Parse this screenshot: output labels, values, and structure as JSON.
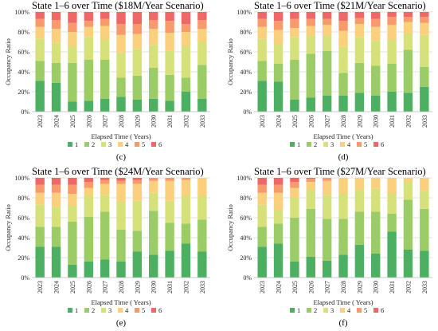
{
  "colors": [
    "#4caf62",
    "#9ccc65",
    "#d6e17a",
    "#fbd07c",
    "#f99a6d",
    "#f06767"
  ],
  "chart_data": [
    {
      "type": "bar",
      "stacked": true,
      "title": "State 1–6 over Time ($18M/Year Scenario)",
      "panel_label": "(c)",
      "xlabel": "Elapsed Time ( Years)",
      "ylabel": "Occupancy Ratio",
      "ylim": [
        0,
        100
      ],
      "y_ticks": [
        "0%",
        "20%",
        "40%",
        "60%",
        "80%",
        "100%"
      ],
      "grid": true,
      "legend_position": "bottom",
      "categories": [
        "2023",
        "2024",
        "2025",
        "2026",
        "2027",
        "2028",
        "2029",
        "2030",
        "2031",
        "2032",
        "2033"
      ],
      "series": [
        {
          "name": "1",
          "values": [
            31,
            29,
            10,
            11,
            13,
            15,
            12,
            13,
            11,
            20,
            13
          ]
        },
        {
          "name": "2",
          "values": [
            20,
            20,
            39,
            41,
            39,
            19,
            24,
            31,
            26,
            14,
            34
          ]
        },
        {
          "name": "3",
          "values": [
            22,
            20,
            17,
            23,
            20,
            25,
            27,
            23,
            24,
            32,
            23
          ]
        },
        {
          "name": "4",
          "values": [
            12,
            14,
            14,
            10,
            14,
            18,
            15,
            16,
            18,
            14,
            13
          ]
        },
        {
          "name": "5",
          "values": [
            8,
            9,
            9,
            6,
            7,
            11,
            10,
            9,
            12,
            8,
            9
          ]
        },
        {
          "name": "6",
          "values": [
            7,
            8,
            11,
            9,
            7,
            12,
            12,
            8,
            9,
            12,
            8
          ]
        }
      ]
    },
    {
      "type": "bar",
      "stacked": true,
      "title": "State 1–6 over Time ($21M/Year Scenario)",
      "panel_label": "(d)",
      "xlabel": "Elapsed Time ( Years)",
      "ylabel": "Occupancy Ratio",
      "ylim": [
        0,
        100
      ],
      "y_ticks": [
        "0%",
        "20%",
        "40%",
        "60%",
        "80%",
        "100%"
      ],
      "grid": true,
      "legend_position": "bottom",
      "categories": [
        "2023",
        "2024",
        "2025",
        "2026",
        "2027",
        "2028",
        "2029",
        "2030",
        "2031",
        "2032",
        "2033"
      ],
      "series": [
        {
          "name": "1",
          "values": [
            31,
            30,
            12,
            14,
            16,
            16,
            19,
            16,
            20,
            19,
            25
          ]
        },
        {
          "name": "2",
          "values": [
            20,
            18,
            40,
            44,
            45,
            23,
            30,
            30,
            28,
            43,
            20
          ]
        },
        {
          "name": "3",
          "values": [
            22,
            20,
            23,
            18,
            15,
            26,
            26,
            25,
            24,
            16,
            32
          ]
        },
        {
          "name": "4",
          "values": [
            12,
            14,
            9,
            10,
            11,
            16,
            13,
            14,
            15,
            12,
            12
          ]
        },
        {
          "name": "5",
          "values": [
            8,
            9,
            9,
            7,
            6,
            10,
            6,
            8,
            8,
            5,
            6
          ]
        },
        {
          "name": "6",
          "values": [
            7,
            9,
            7,
            7,
            7,
            9,
            6,
            7,
            5,
            5,
            5
          ]
        }
      ]
    },
    {
      "type": "bar",
      "stacked": true,
      "title": "State 1–6 over Time ($24M/Year Scenario)",
      "panel_label": "(e)",
      "xlabel": "Elapsed Time ( Years)",
      "ylabel": "Occupancy Ratio",
      "ylim": [
        0,
        100
      ],
      "y_ticks": [
        "0%",
        "20%",
        "40%",
        "60%",
        "80%",
        "100%"
      ],
      "grid": true,
      "legend_position": "bottom",
      "categories": [
        "2023",
        "2024",
        "2025",
        "2026",
        "2027",
        "2028",
        "2029",
        "2030",
        "2031",
        "2032",
        "2033"
      ],
      "series": [
        {
          "name": "1",
          "values": [
            31,
            31,
            13,
            16,
            18,
            16,
            26,
            23,
            27,
            34,
            26
          ]
        },
        {
          "name": "2",
          "values": [
            20,
            20,
            43,
            45,
            48,
            32,
            21,
            44,
            28,
            20,
            32
          ]
        },
        {
          "name": "3",
          "values": [
            22,
            20,
            16,
            21,
            17,
            28,
            30,
            18,
            22,
            28,
            24
          ]
        },
        {
          "name": "4",
          "values": [
            12,
            14,
            12,
            8,
            11,
            18,
            17,
            12,
            20,
            16,
            18
          ]
        },
        {
          "name": "5",
          "values": [
            8,
            8,
            9,
            6,
            4,
            3,
            4,
            3,
            3,
            2,
            0
          ]
        },
        {
          "name": "6",
          "values": [
            7,
            7,
            7,
            4,
            2,
            3,
            2,
            0,
            0,
            0,
            0
          ]
        }
      ]
    },
    {
      "type": "bar",
      "stacked": true,
      "title": "State 1–6 over Time ($27M/Year Scenario)",
      "panel_label": "(f)",
      "xlabel": "Elapsed Time ( Years)",
      "ylabel": "Occupancy Ratio",
      "ylim": [
        0,
        100
      ],
      "y_ticks": [
        "0%",
        "20%",
        "40%",
        "60%",
        "80%",
        "100%"
      ],
      "grid": true,
      "legend_position": "bottom",
      "categories": [
        "2023",
        "2024",
        "2025",
        "2026",
        "2027",
        "2028",
        "2029",
        "2030",
        "2031",
        "2032",
        "2033"
      ],
      "series": [
        {
          "name": "1",
          "values": [
            31,
            34,
            16,
            21,
            17,
            23,
            33,
            24,
            46,
            28,
            27
          ]
        },
        {
          "name": "2",
          "values": [
            20,
            20,
            44,
            48,
            42,
            36,
            33,
            42,
            18,
            50,
            42
          ]
        },
        {
          "name": "3",
          "values": [
            22,
            14,
            20,
            19,
            24,
            25,
            22,
            23,
            20,
            18,
            18
          ]
        },
        {
          "name": "4",
          "values": [
            12,
            17,
            10,
            8,
            14,
            16,
            12,
            11,
            16,
            4,
            13
          ]
        },
        {
          "name": "5",
          "values": [
            8,
            8,
            6,
            3,
            3,
            0,
            0,
            0,
            0,
            0,
            0
          ]
        },
        {
          "name": "6",
          "values": [
            7,
            7,
            4,
            1,
            0,
            0,
            0,
            0,
            0,
            0,
            0
          ]
        }
      ]
    }
  ]
}
